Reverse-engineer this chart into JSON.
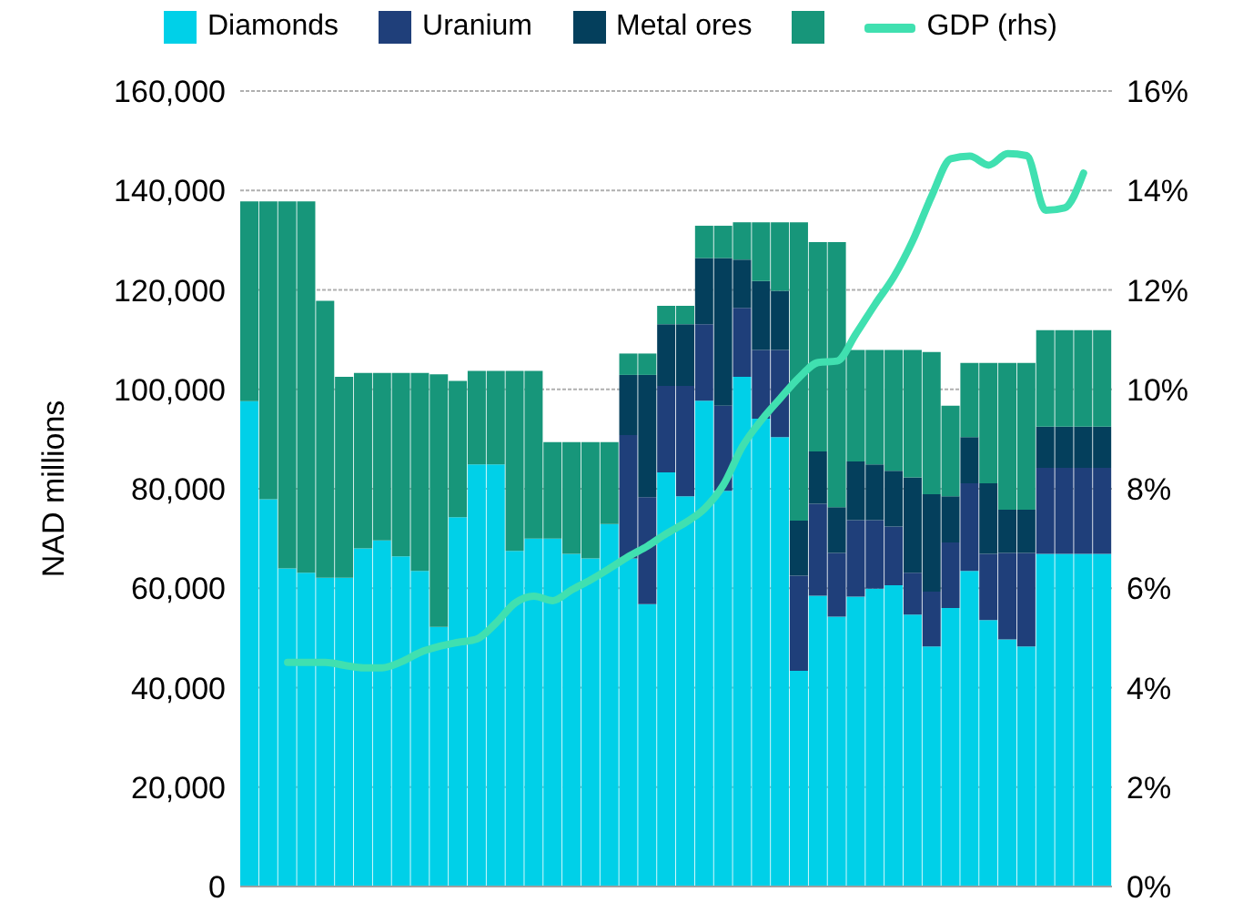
{
  "chart_data": {
    "type": "bar",
    "stacked": true,
    "ylabel": "NAD millions",
    "legend": "top left",
    "grid": "y",
    "categories": [
      null,
      null,
      null,
      null,
      null,
      null,
      null,
      null,
      null,
      null,
      null,
      null,
      null,
      null,
      null,
      null,
      null,
      null,
      null,
      null,
      null,
      null,
      null,
      null,
      null,
      null,
      null,
      null,
      null,
      null,
      null,
      null,
      null,
      null,
      null,
      null,
      null,
      null,
      null,
      null,
      null,
      null,
      null,
      null,
      null,
      null
    ],
    "ylim": [
      0,
      160000
    ],
    "yticks": [
      {
        "value": 0,
        "label": "0"
      },
      {
        "value": 20000,
        "label": "20,000"
      },
      {
        "value": 40000,
        "label": "40,000"
      },
      {
        "value": 60000,
        "label": "60,000"
      },
      {
        "value": 80000,
        "label": "80,000"
      },
      {
        "value": 100000,
        "label": "100,000"
      },
      {
        "value": 120000,
        "label": "120,000"
      },
      {
        "value": 140000,
        "label": "140,000"
      },
      {
        "value": 160000,
        "label": "160,000"
      }
    ],
    "y2lim": [
      0,
      16
    ],
    "y2ticks": [
      {
        "value": 0,
        "label": "0%"
      },
      {
        "value": 2,
        "label": "2%"
      },
      {
        "value": 4,
        "label": "4%"
      },
      {
        "value": 6,
        "label": "6%"
      },
      {
        "value": 8,
        "label": "8%"
      },
      {
        "value": 10,
        "label": "10%"
      },
      {
        "value": 12,
        "label": "12%"
      },
      {
        "value": 14,
        "label": "14%"
      },
      {
        "value": 16,
        "label": "16%"
      }
    ],
    "series": [
      {
        "name": "Diamonds",
        "color": "#00d0e8",
        "values": [
          97600,
          77900,
          64000,
          63100,
          62100,
          62100,
          68000,
          69600,
          66400,
          63500,
          52200,
          74300,
          84900,
          84900,
          67500,
          70000,
          70000,
          66900,
          66000,
          72900,
          66000,
          56800,
          83300,
          78500,
          97700,
          79600,
          102500,
          94100,
          90400,
          43400,
          58500,
          54300,
          58300,
          59900,
          60600,
          54700,
          48300,
          56000,
          63500,
          53600,
          49700,
          48300,
          66900,
          66900,
          66900,
          66900
        ]
      },
      {
        "name": "Uranium",
        "color": "#1f3f7a",
        "values": [
          0,
          0,
          0,
          0,
          0,
          0,
          0,
          0,
          0,
          0,
          0,
          0,
          0,
          0,
          0,
          0,
          0,
          0,
          0,
          0,
          24800,
          21500,
          17400,
          22200,
          15400,
          17100,
          13900,
          13800,
          17500,
          19100,
          18500,
          12800,
          15400,
          13800,
          11800,
          8400,
          11000,
          13200,
          17600,
          13300,
          17400,
          18800,
          17300,
          17300,
          17300,
          17300
        ]
      },
      {
        "name": "Metal ores",
        "color": "#043f5c",
        "values": [
          0,
          0,
          0,
          0,
          0,
          0,
          0,
          0,
          0,
          0,
          0,
          0,
          0,
          0,
          0,
          0,
          0,
          0,
          0,
          0,
          12100,
          24600,
          12400,
          12400,
          13300,
          29700,
          9700,
          13900,
          11900,
          11100,
          10500,
          9200,
          11800,
          11200,
          11200,
          19200,
          19600,
          9300,
          9300,
          14200,
          8700,
          8700,
          8300,
          8300,
          8300,
          8300
        ]
      },
      {
        "color": "#17967a",
        "values": [
          40200,
          59900,
          73800,
          74700,
          55700,
          40400,
          35300,
          33700,
          36900,
          39800,
          50800,
          27400,
          18800,
          18800,
          36200,
          33700,
          19400,
          22500,
          23400,
          16500,
          4300,
          4300,
          3700,
          3700,
          6500,
          6500,
          7500,
          11800,
          13800,
          60000,
          42100,
          53300,
          22400,
          23000,
          24300,
          25600,
          28600,
          18200,
          14900,
          24200,
          29500,
          29500,
          19400,
          19400,
          19400,
          19400
        ]
      },
      {
        "name": "GDP (rhs)",
        "type": "line",
        "axis": "y2",
        "color": "#40e0b0",
        "values": [
          null,
          null,
          4.51,
          4.51,
          4.51,
          4.45,
          4.4,
          4.4,
          4.52,
          4.71,
          4.83,
          4.91,
          4.98,
          5.3,
          5.7,
          5.84,
          5.75,
          5.97,
          6.17,
          6.4,
          6.64,
          6.85,
          7.1,
          7.32,
          7.6,
          8.08,
          8.85,
          9.38,
          9.82,
          10.24,
          10.54,
          10.57,
          11.12,
          11.71,
          12.27,
          13.0,
          13.9,
          14.64,
          14.69,
          14.51,
          14.74,
          14.7,
          13.6,
          13.65,
          14.35,
          null
        ]
      }
    ]
  }
}
